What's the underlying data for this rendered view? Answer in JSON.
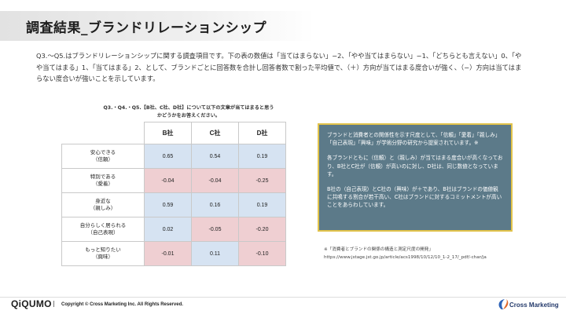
{
  "header": {
    "title": "調査結果_ブランドリレーションシップ"
  },
  "intro": "Q3.～Q5.はブランドリレーションシップに関する調査項目です。下の表の数値は「当てはまらない」−2、「やや当てはまらない」−1、「どちらとも言えない」0、「やや当てはまる」1、「当てはまる」2、として、ブランドごとに回答数を合計し回答者数で割った平均値で、（＋）方向が当てはまる度合いが強く、（−）方向は当てはまらない度合いが強いことを示しています。",
  "question": {
    "line1": "Q3.・Q4.・Q5.【B社、C社、D社】について以下の文章が当てはまると思う",
    "line2": "かどうかをお答えください。"
  },
  "table": {
    "columns": [
      "B社",
      "C社",
      "D社"
    ],
    "rows": [
      {
        "label1": "安心できる",
        "label2": "（信頼）",
        "values": [
          "0.65",
          "0.54",
          "0.19"
        ],
        "signs": [
          "pos",
          "pos",
          "pos"
        ]
      },
      {
        "label1": "特別である",
        "label2": "（愛着）",
        "values": [
          "-0.04",
          "-0.04",
          "-0.25"
        ],
        "signs": [
          "neg",
          "neg",
          "neg"
        ]
      },
      {
        "label1": "身近な",
        "label2": "（親しみ）",
        "values": [
          "0.59",
          "0.16",
          "0.19"
        ],
        "signs": [
          "pos",
          "pos",
          "pos"
        ]
      },
      {
        "label1": "自分らしく居られる",
        "label2": "（自己表現）",
        "values": [
          "0.02",
          "-0.05",
          "-0.20"
        ],
        "signs": [
          "pos",
          "neg",
          "neg"
        ]
      },
      {
        "label1": "もっと知りたい",
        "label2": "（興味）",
        "values": [
          "-0.01",
          "0.11",
          "-0.10"
        ],
        "signs": [
          "neg",
          "pos",
          "neg"
        ]
      }
    ]
  },
  "callout": {
    "p1": "ブランドと消費者との関係性を示す尺度として、「信頼」「愛着」「親しみ」「自己表現」「興味」が学術分野の研究から提案されています。※",
    "p2": "各ブランドともに（信頼）と（親しみ）が当てはまる度合いが高くなっており、B社とC社が（信頼）が高いのに対し、D社は、同じ数値となっています。",
    "p3": "B社の（自己表現）とC社の（興味）が＋であり、B社はブランドの価値観に共鳴する割合が若干高い、C社はブランドに対するコミットメントが高いことをあらわしています。"
  },
  "source": {
    "line1": "※「消費者とブランドの関係の構造と測定尺度の開発」",
    "line2": "https://www.jstage.jst.go.jp/article/acs1998/10/12/10_1-2_17/_pdf/-char/ja"
  },
  "footer": {
    "logo_left": "QiQUMO",
    "separator": "|",
    "copyright": "Copyright © Cross Marketing Inc. All Rights Reserved.",
    "logo_right": "Cross Marketing"
  },
  "colors": {
    "positive_cell": "#d6e3f2",
    "negative_cell": "#efcfd2",
    "callout_bg": "#5c7a89",
    "callout_border": "#e2c34a"
  }
}
